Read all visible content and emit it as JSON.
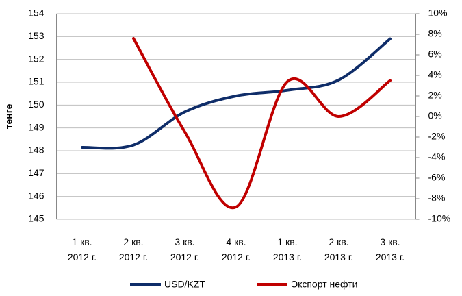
{
  "chart_data": {
    "type": "line",
    "y_label": "тенге",
    "categories": [
      "1 кв. 2012 г.",
      "2 кв. 2012 г.",
      "3 кв. 2012 г.",
      "4 кв. 2012 г.",
      "1 кв. 2013 г.",
      "2 кв. 2013 г.",
      "3 кв. 2013 г."
    ],
    "series": [
      {
        "name": "USD/KZT",
        "color": "#0f2d69",
        "values": [
          148.15,
          148.25,
          149.7,
          150.4,
          150.65,
          151.1,
          152.9
        ]
      },
      {
        "name": "Экспорт нефти",
        "color": "#c00000",
        "axis": "y2",
        "values": [
          null,
          7.6,
          -1.5,
          -8.8,
          3.4,
          0.0,
          3.5
        ]
      }
    ],
    "ylim": [
      145,
      154
    ],
    "yticks": [
      145,
      146,
      147,
      148,
      149,
      150,
      151,
      152,
      153,
      154
    ],
    "y2lim": [
      -10,
      10
    ],
    "y2ticks": [
      {
        "value": -10,
        "label": "-10%"
      },
      {
        "value": -8,
        "label": "-8%"
      },
      {
        "value": -6,
        "label": "-6%"
      },
      {
        "value": -4,
        "label": "-4%"
      },
      {
        "value": -2,
        "label": "-2%"
      },
      {
        "value": 0,
        "label": "0%"
      },
      {
        "value": 2,
        "label": "2%"
      },
      {
        "value": 4,
        "label": "4%"
      },
      {
        "value": 6,
        "label": "6%"
      },
      {
        "value": 8,
        "label": "8%"
      },
      {
        "value": 10,
        "label": "10%"
      }
    ],
    "grid": true,
    "smooth": true,
    "legend": "bottom"
  }
}
